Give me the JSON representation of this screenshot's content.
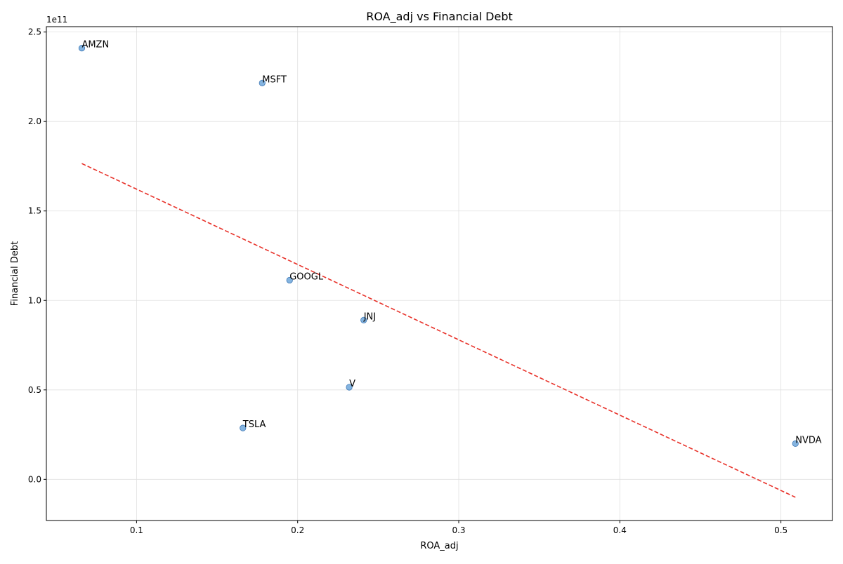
{
  "chart_data": {
    "type": "scatter",
    "title": "ROA_adj vs Financial Debt",
    "xlabel": "ROA_adj",
    "ylabel": "Financial Debt",
    "y_offset_text": "1e11",
    "xlim": [
      0.044,
      0.532
    ],
    "ylim": [
      -23000000000.0,
      253000000000.0
    ],
    "x_ticks": [
      0.1,
      0.2,
      0.3,
      0.4,
      0.5
    ],
    "x_tick_labels": [
      "0.1",
      "0.2",
      "0.3",
      "0.4",
      "0.5"
    ],
    "y_ticks": [
      0,
      50000000000.0,
      100000000000.0,
      150000000000.0,
      200000000000.0,
      250000000000.0
    ],
    "y_tick_labels": [
      "0.0",
      "0.5",
      "1.0",
      "1.5",
      "2.0",
      "2.5"
    ],
    "grid": true,
    "points": [
      {
        "label": "AMZN",
        "x": 0.066,
        "y": 241000000000.0
      },
      {
        "label": "MSFT",
        "x": 0.178,
        "y": 221500000000.0
      },
      {
        "label": "GOOGL",
        "x": 0.195,
        "y": 111300000000.0
      },
      {
        "label": "JNJ",
        "x": 0.241,
        "y": 89000000000.0
      },
      {
        "label": "V",
        "x": 0.232,
        "y": 51500000000.0
      },
      {
        "label": "TSLA",
        "x": 0.166,
        "y": 28700000000.0
      },
      {
        "label": "NVDA",
        "x": 0.509,
        "y": 20000000000.0
      }
    ],
    "trendline": {
      "x": [
        0.066,
        0.509
      ],
      "y": [
        176500000000.0,
        -10000000000.0
      ],
      "style": "dashed",
      "color": "#e8322a"
    },
    "point_color": "#5b9bd5"
  }
}
